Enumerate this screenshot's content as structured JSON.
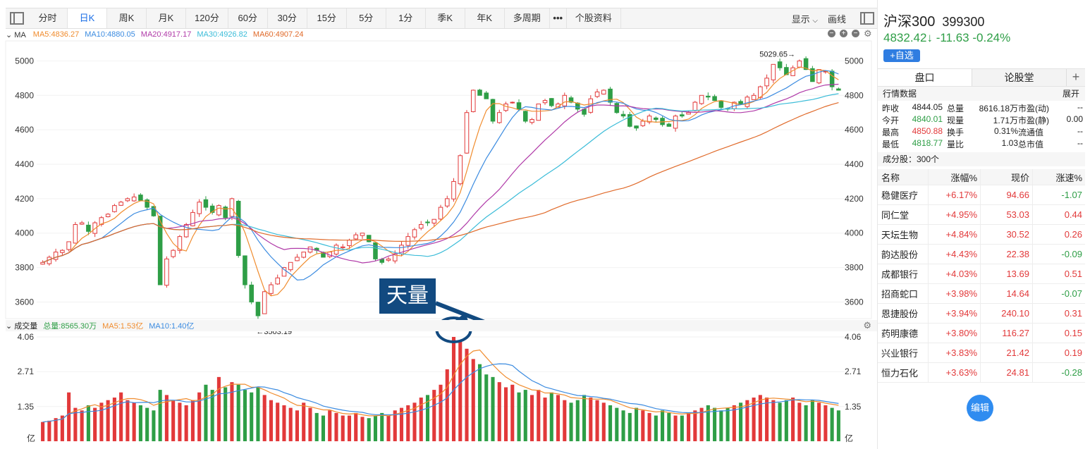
{
  "toolbar": {
    "tabs": [
      "分时",
      "日K",
      "周K",
      "月K",
      "120分",
      "60分",
      "30分",
      "15分",
      "5分",
      "1分",
      "季K",
      "年K",
      "多周期",
      "•••",
      "个股资料"
    ],
    "active_index": 1,
    "display_label": "显示",
    "draw_label": "画线"
  },
  "ma": {
    "label": "MA",
    "ma5": "MA5:4836.27",
    "ma10": "MA10:4880.05",
    "ma20": "MA20:4917.17",
    "ma30": "MA30:4926.82",
    "ma60": "MA60:4907.24"
  },
  "volume": {
    "label": "成交量",
    "total": "总量:8565.30万",
    "ma5": "MA5:1.53亿",
    "ma10": "MA10:1.40亿"
  },
  "chart_data": {
    "type": "candlestick",
    "y_ticks": [
      5000,
      4800,
      4600,
      4400,
      4200,
      4000,
      3800,
      3600
    ],
    "ylim": [
      3520,
      5100
    ],
    "high_label": "5029.65→",
    "low_label": "←3503.19",
    "volume_ticks": [
      "4.06",
      "2.71",
      "1.35"
    ],
    "volume_unit": "亿",
    "volume_ylim": [
      0,
      4.06
    ],
    "close_path": [
      3830,
      3860,
      3890,
      3900,
      3950,
      4050,
      4060,
      4010,
      4060,
      4090,
      4110,
      4160,
      4180,
      4200,
      4210,
      4190,
      4150,
      4100,
      3700,
      3850,
      3900,
      3980,
      4050,
      4120,
      4180,
      4150,
      4120,
      4160,
      4090,
      4200,
      3870,
      3700,
      3600,
      3520,
      3660,
      3700,
      3740,
      3800,
      3830,
      3860,
      3890,
      3920,
      3900,
      3860,
      3890,
      3930,
      3920,
      3960,
      3990,
      4000,
      3950,
      3850,
      3830,
      3850,
      3880,
      3930,
      3980,
      4020,
      4050,
      4060,
      4080,
      4150,
      4200,
      4300,
      4450,
      4700,
      4830,
      4800,
      4780,
      4650,
      4700,
      4750,
      4760,
      4720,
      4650,
      4660,
      4750,
      4770,
      4740,
      4750,
      4800,
      4760,
      4720,
      4690,
      4780,
      4820,
      4830,
      4760,
      4700,
      4680,
      4620,
      4610,
      4650,
      4680,
      4660,
      4630,
      4620,
      4680,
      4680,
      4700,
      4760,
      4800,
      4790,
      4770,
      4730,
      4720,
      4760,
      4750,
      4790,
      4800,
      4850,
      4900,
      4980,
      4960,
      4920,
      4960,
      5000,
      4950,
      4880,
      4950,
      4940,
      4850,
      4830
    ],
    "volume_path": [
      0.75,
      0.8,
      0.9,
      1.0,
      1.9,
      1.3,
      1.2,
      1.4,
      1.3,
      1.5,
      1.6,
      1.7,
      1.9,
      1.6,
      1.5,
      1.4,
      1.3,
      1.2,
      2.0,
      1.8,
      1.6,
      1.5,
      1.4,
      1.6,
      1.9,
      2.2,
      2.0,
      2.5,
      2.1,
      2.3,
      2.2,
      2.0,
      1.9,
      2.1,
      1.8,
      1.6,
      1.5,
      1.4,
      1.3,
      1.2,
      1.5,
      1.3,
      1.1,
      1.0,
      1.2,
      1.1,
      1.0,
      1.0,
      1.1,
      0.95,
      0.9,
      1.0,
      1.1,
      1.0,
      1.2,
      1.3,
      1.4,
      1.5,
      1.7,
      1.8,
      2.0,
      2.2,
      2.8,
      4.06,
      3.9,
      3.6,
      3.2,
      3.0,
      2.6,
      2.5,
      2.3,
      2.1,
      2.2,
      1.9,
      2.0,
      1.8,
      2.0,
      1.7,
      1.9,
      1.8,
      1.6,
      1.5,
      1.6,
      1.8,
      1.7,
      1.6,
      1.5,
      1.4,
      1.3,
      1.2,
      1.1,
      1.3,
      1.2,
      1.1,
      1.0,
      1.2,
      1.1,
      1.0,
      1.0,
      1.1,
      1.2,
      1.3,
      1.4,
      1.3,
      1.2,
      1.3,
      1.4,
      1.5,
      1.6,
      1.7,
      1.8,
      1.7,
      1.6,
      1.5,
      1.6,
      1.7,
      1.5,
      1.4,
      1.6,
      1.5,
      1.4,
      1.3,
      1.2
    ]
  },
  "annotation": {
    "text": "天量"
  },
  "stock": {
    "name": "沪深300",
    "code": "399300",
    "price": "4832.42↓",
    "change": "-11.63",
    "change_pct": "-0.24%",
    "fav_label": "+自选"
  },
  "right_tabs": [
    "盘口",
    "论股堂"
  ],
  "quote": {
    "section_label": "行情数据",
    "expand_label": "展开",
    "rows": [
      {
        "k1": "昨收",
        "v1": "4844.05",
        "k2": "总量",
        "v2": "8616.18万",
        "k3": "市盈(动)",
        "v3": "--"
      },
      {
        "k1": "今开",
        "v1": "4840.01",
        "k2": "现量",
        "v2": "1.71万",
        "k3": "市盈(静)",
        "v3": "0.00"
      },
      {
        "k1": "最高",
        "v1": "4850.88",
        "k2": "换手",
        "v2": "0.31%",
        "k3": "流通值",
        "v3": "--"
      },
      {
        "k1": "最低",
        "v1": "4818.77",
        "k2": "量比",
        "v2": "1.03",
        "k3": "总市值",
        "v3": "--"
      }
    ]
  },
  "constituents": {
    "label": "成分股：300个",
    "headers": [
      "名称",
      "涨幅%",
      "现价",
      "涨速%"
    ],
    "rows": [
      {
        "name": "稳健医疗",
        "pct": "+6.17%",
        "price": "94.66",
        "speed": "-1.07"
      },
      {
        "name": "同仁堂",
        "pct": "+4.95%",
        "price": "53.03",
        "speed": "0.44"
      },
      {
        "name": "天坛生物",
        "pct": "+4.84%",
        "price": "30.52",
        "speed": "0.26"
      },
      {
        "name": "韵达股份",
        "pct": "+4.43%",
        "price": "22.38",
        "speed": "-0.09"
      },
      {
        "name": "成都银行",
        "pct": "+4.03%",
        "price": "13.69",
        "speed": "0.51"
      },
      {
        "name": "招商蛇口",
        "pct": "+3.98%",
        "price": "14.64",
        "speed": "-0.07"
      },
      {
        "name": "恩捷股份",
        "pct": "+3.94%",
        "price": "240.10",
        "speed": "0.31"
      },
      {
        "name": "药明康德",
        "pct": "+3.80%",
        "price": "116.27",
        "speed": "0.15"
      },
      {
        "name": "兴业银行",
        "pct": "+3.83%",
        "price": "21.42",
        "speed": "0.19"
      },
      {
        "name": "恒力石化",
        "pct": "+3.63%",
        "price": "24.81",
        "speed": "-0.28"
      }
    ]
  },
  "edit_label": "编辑",
  "colors": {
    "up": "#e2393a",
    "down": "#2e9e46",
    "ma5": "#f08c2e",
    "ma10": "#3b8be0",
    "ma20": "#b03aa8",
    "ma30": "#3bbcd8",
    "ma60": "#e06a2a",
    "accent": "#2f7de1"
  }
}
